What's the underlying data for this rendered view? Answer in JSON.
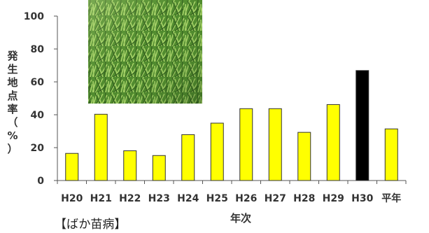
{
  "chart_data": {
    "type": "bar",
    "categories": [
      "H20",
      "H21",
      "H22",
      "H23",
      "H24",
      "H25",
      "H26",
      "H27",
      "H28",
      "H29",
      "H30",
      "平年"
    ],
    "values": [
      16.5,
      40.3,
      18.1,
      15.2,
      27.9,
      34.9,
      43.7,
      43.7,
      29.3,
      46.2,
      66.9,
      31.4
    ],
    "highlight_index": 10,
    "colors": {
      "bar": "#FFFF00",
      "highlight": "#000000",
      "outline": "#333333"
    },
    "ylabel": "発生地点率（%）",
    "ylabel_chars": [
      "発",
      "生",
      "地",
      "点",
      "率",
      "（",
      "%",
      "）"
    ],
    "xlabel": "年次",
    "ylim": [
      0,
      100
    ],
    "yticks": [
      0,
      20,
      40,
      60,
      80,
      100
    ],
    "ytick_labels": [
      "0",
      "20",
      "40",
      "60",
      "80",
      "100"
    ],
    "grid": false,
    "inset_image": "green-grass-photo"
  },
  "caption": "【ばか苗病】"
}
